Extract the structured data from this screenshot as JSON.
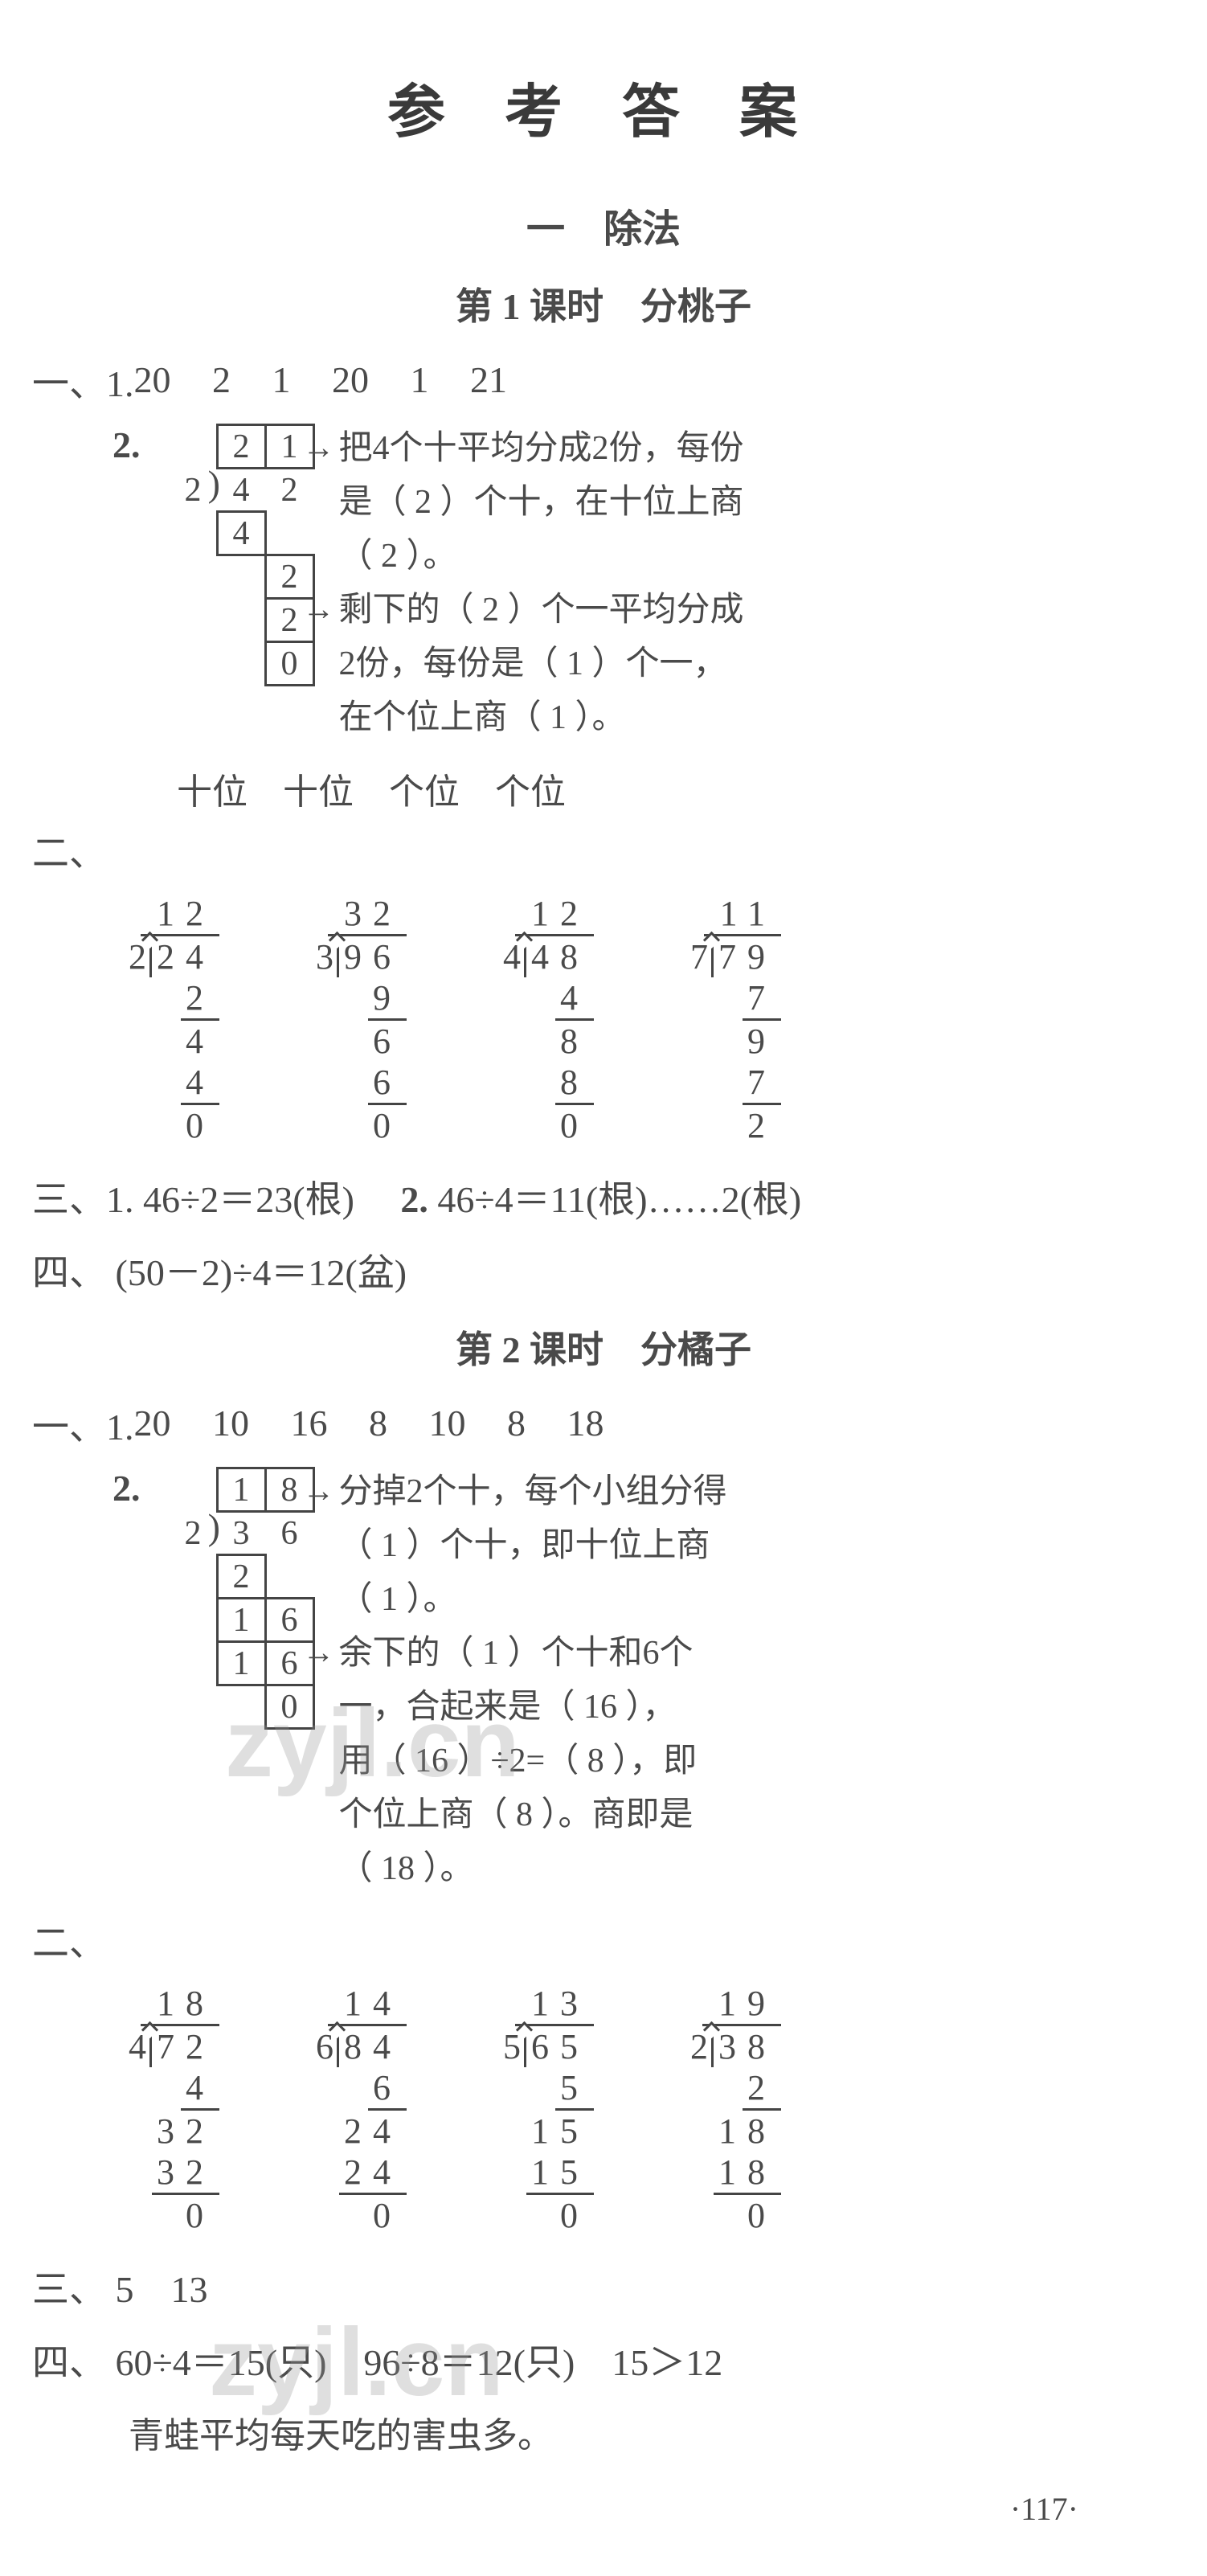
{
  "title": "参 考 答 案",
  "chapter": "一　除法",
  "lesson1": {
    "title": "第 1 课时　分桃子",
    "q1_1_label": "一、1.",
    "q1_1_values": [
      "20",
      "2",
      "1",
      "20",
      "1",
      "21"
    ],
    "q1_2_label": "2.",
    "q1_2_diagram": {
      "quotient": [
        "2",
        "1"
      ],
      "divisor": "2",
      "dividend": [
        "4",
        "2"
      ],
      "step1": [
        "4"
      ],
      "step2": [
        "2"
      ],
      "step3": [
        "2"
      ],
      "step4": [
        "0"
      ]
    },
    "q1_2_notes": [
      "把4个十平均分成2份，每份",
      "是（ 2 ）个十，在十位上商",
      "（ 2 ）。",
      "剩下的（ 2 ）个一平均分成",
      "2份，每份是（ 1 ）个一，",
      "在个位上商（ 1 ）。"
    ],
    "q1_2_bottom": "十位　十位　个位　个位",
    "q2_label": "二、",
    "q2_divisions": [
      {
        "divisor": "2",
        "dividend": "24",
        "quotient": "12",
        "steps": [
          "2",
          "4",
          "4",
          "0"
        ]
      },
      {
        "divisor": "3",
        "dividend": "96",
        "quotient": "32",
        "steps": [
          "9",
          "6",
          "6",
          "0"
        ]
      },
      {
        "divisor": "4",
        "dividend": "48",
        "quotient": "12",
        "steps": [
          "4",
          "8",
          "8",
          "0"
        ]
      },
      {
        "divisor": "7",
        "dividend": "79",
        "quotient": "11",
        "steps": [
          "7",
          "9",
          "7",
          "2"
        ]
      }
    ],
    "q3_label": "三、1.",
    "q3_1": "46÷2＝23(根)",
    "q3_2_label": "2.",
    "q3_2": "46÷4＝11(根)……2(根)",
    "q4_label": "四、",
    "q4": "(50－2)÷4＝12(盆)"
  },
  "lesson2": {
    "title": "第 2 课时　分橘子",
    "q1_1_label": "一、1.",
    "q1_1_values": [
      "20",
      "10",
      "16",
      "8",
      "10",
      "8",
      "18"
    ],
    "q1_2_label": "2.",
    "q1_2_diagram": {
      "quotient": [
        "1",
        "8"
      ],
      "divisor": "2",
      "dividend": [
        "3",
        "6"
      ],
      "step1": [
        "2"
      ],
      "step2": [
        "1",
        "6"
      ],
      "step3": [
        "1",
        "6"
      ],
      "step4": [
        "0"
      ]
    },
    "q1_2_notes": [
      "分掉2个十，每个小组分得",
      "（ 1 ）个十，即十位上商",
      "（ 1 ）。",
      "余下的（ 1 ）个十和6个",
      "一，合起来是（ 16 ），",
      "用（ 16 ）÷2=（ 8 ），即",
      "个位上商（ 8 ）。商即是",
      "（ 18 ）。"
    ],
    "q2_label": "二、",
    "q2_divisions": [
      {
        "divisor": "4",
        "dividend": "72",
        "quotient": "18",
        "steps": [
          "4",
          "32",
          "32",
          "0"
        ]
      },
      {
        "divisor": "6",
        "dividend": "84",
        "quotient": "14",
        "steps": [
          "6",
          "24",
          "24",
          "0"
        ]
      },
      {
        "divisor": "5",
        "dividend": "65",
        "quotient": "13",
        "steps": [
          "5",
          "15",
          "15",
          "0"
        ]
      },
      {
        "divisor": "2",
        "dividend": "38",
        "quotient": "19",
        "steps": [
          "2",
          "18",
          "18",
          "0"
        ]
      }
    ],
    "q3_label": "三、",
    "q3": "5　13",
    "q4_label": "四、",
    "q4_line1": "60÷4＝15(只)　96÷8＝12(只)　15＞12",
    "q4_line2": "青蛙平均每天吃的害虫多。"
  },
  "watermark1": "zyjl.cn",
  "watermark2": "zyjl.cn",
  "page_num": "·117·",
  "colors": {
    "text": "#4a4a4a",
    "border": "#444444",
    "background": "#ffffff",
    "watermark": "rgba(150,150,150,0.3)"
  },
  "fonts": {
    "body": "SimSun",
    "math": "Times New Roman",
    "title_size": 72,
    "body_size": 46
  }
}
